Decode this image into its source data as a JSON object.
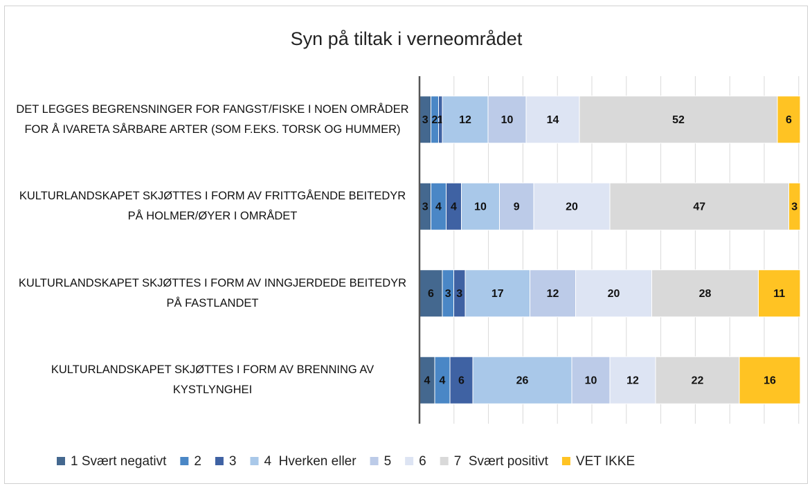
{
  "chart_data": {
    "type": "stacked-bar-horizontal",
    "title": "Syn på tiltak i verneområdet",
    "categories": [
      "DET LEGGES BEGRENSNINGER FOR FANGST/FISKE I NOEN OMRÅDER FOR Å IVARETA SÅRBARE ARTER (SOM F.EKS. TORSK OG HUMMER)",
      "KULTURLANDSKAPET SKJØTTES I FORM AV FRITTGÅENDE BEITEDYR PÅ HOLMER/ØYER I OMRÅDET",
      "KULTURLANDSKAPET SKJØTTES I FORM AV INNGJERDEDE BEITEDYR PÅ FASTLANDET",
      "KULTURLANDSKAPET SKJØTTES I FORM AV BRENNING AV KYSTLYNGHEI"
    ],
    "series": [
      {
        "name": "1 Svært negativt",
        "color": "#44688f",
        "values": [
          3,
          3,
          6,
          4
        ]
      },
      {
        "name": "2",
        "color": "#4a87c6",
        "values": [
          2,
          4,
          3,
          4
        ]
      },
      {
        "name": "3",
        "color": "#3f62a3",
        "values": [
          1,
          4,
          3,
          6
        ]
      },
      {
        "name": "4  Hverken eller",
        "color": "#a9c8e9",
        "values": [
          12,
          10,
          17,
          26
        ]
      },
      {
        "name": "5",
        "color": "#bccbe8",
        "values": [
          10,
          9,
          12,
          10
        ]
      },
      {
        "name": "6",
        "color": "#dde4f3",
        "values": [
          14,
          20,
          20,
          12
        ]
      },
      {
        "name": "7  Svært positivt",
        "color": "#d9d9d9",
        "values": [
          52,
          47,
          28,
          22
        ]
      },
      {
        "name": "VET IKKE",
        "color": "#ffc323",
        "values": [
          6,
          3,
          11,
          16
        ]
      }
    ],
    "xlim": [
      0,
      100
    ],
    "grid": true,
    "legend": "bottom"
  }
}
